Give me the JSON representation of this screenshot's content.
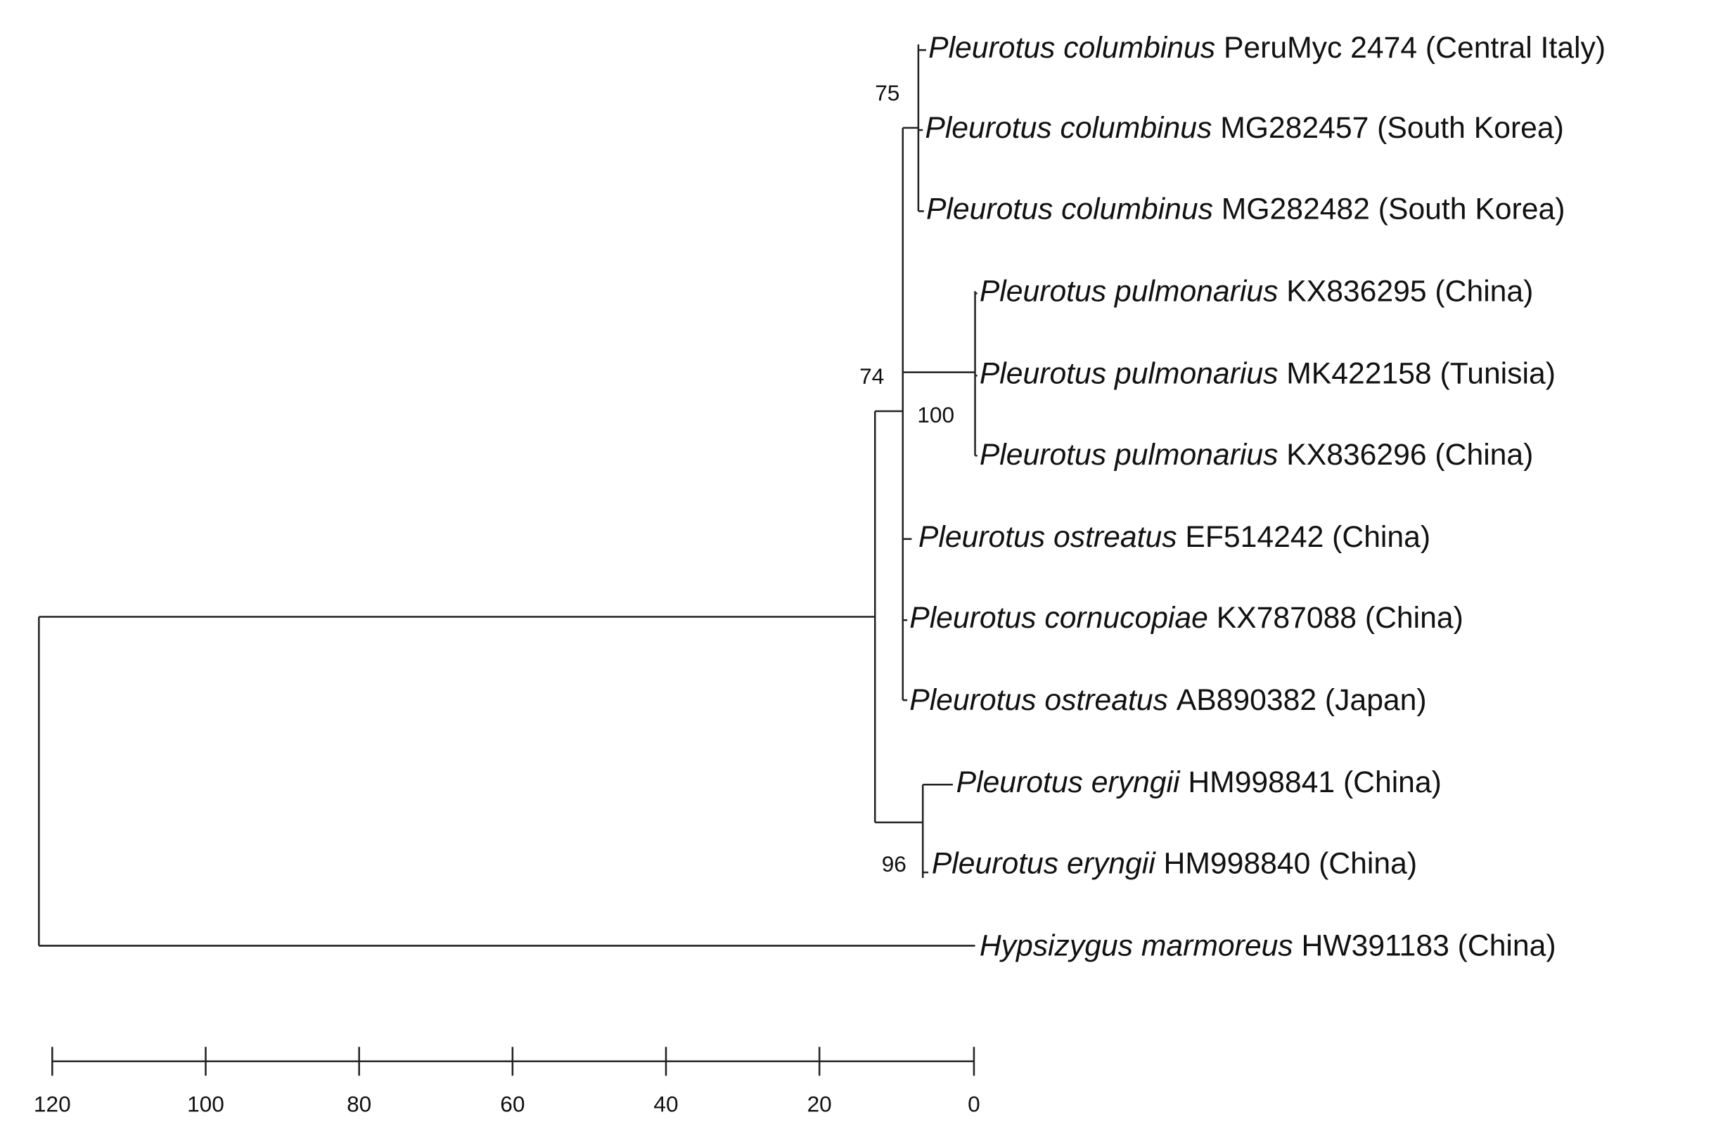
{
  "leaves": [
    {
      "species": "Pleurotus columbinus",
      "rest": "PeruMyc 2474 (Central Italy)"
    },
    {
      "species": "Pleurotus columbinus",
      "rest": "MG282457 (South Korea)"
    },
    {
      "species": "Pleurotus columbinus",
      "rest": "MG282482 (South Korea)"
    },
    {
      "species": "Pleurotus pulmonarius",
      "rest": "KX836295 (China)"
    },
    {
      "species": "Pleurotus pulmonarius",
      "rest": "MK422158 (Tunisia)"
    },
    {
      "species": "Pleurotus pulmonarius",
      "rest": "KX836296 (China)"
    },
    {
      "species": "Pleurotus ostreatus",
      "rest": "EF514242 (China)"
    },
    {
      "species": "Pleurotus cornucopiae",
      "rest": "KX787088 (China)"
    },
    {
      "species": "Pleurotus ostreatus",
      "rest": "AB890382 (Japan)"
    },
    {
      "species": "Pleurotus eryngii",
      "rest": "HM998841 (China)"
    },
    {
      "species": "Pleurotus eryngii",
      "rest": "HM998840 (China)"
    },
    {
      "species": "Hypsizygus marmoreus",
      "rest": "HW391183 (China)"
    }
  ],
  "bootstrap": [
    75,
    74,
    100,
    96
  ],
  "scale": [
    120,
    100,
    80,
    60,
    40,
    20,
    0
  ]
}
